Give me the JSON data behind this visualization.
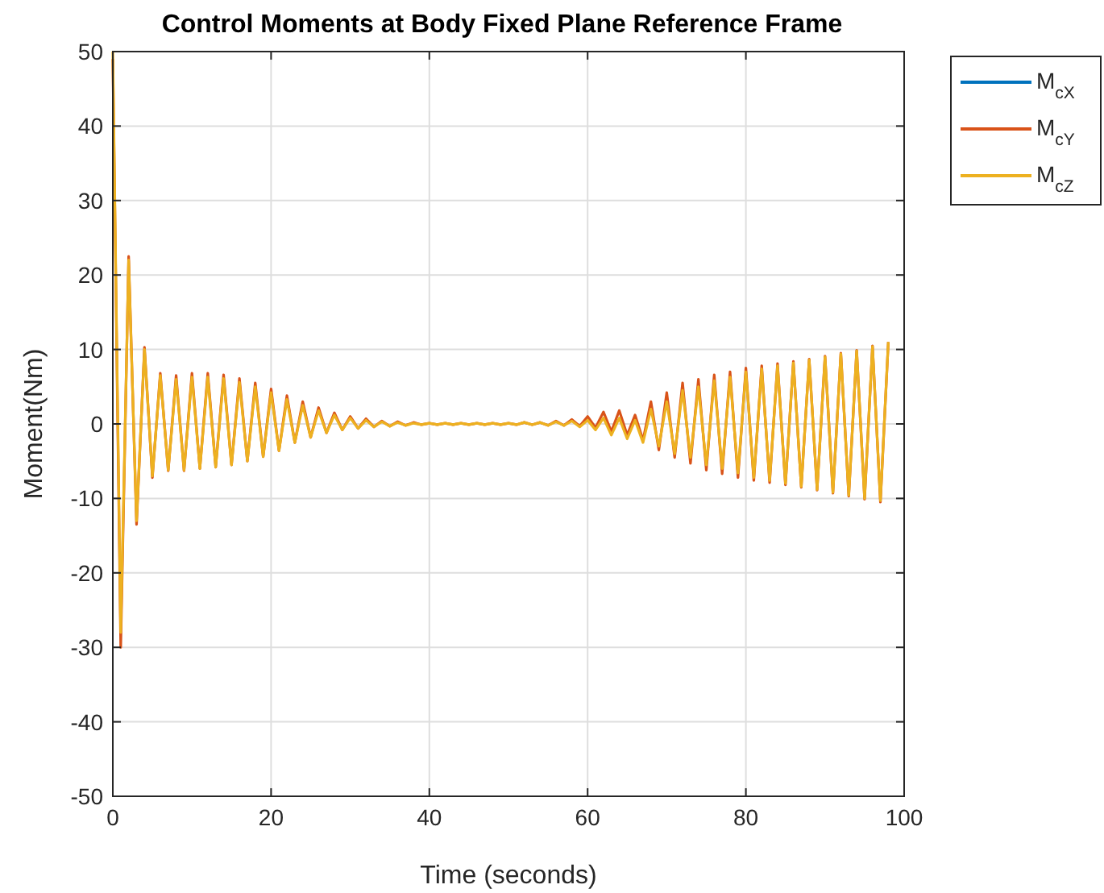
{
  "chart_data": {
    "type": "line",
    "title": "Control Moments at Body Fixed Plane Reference Frame",
    "xlabel": "Time (seconds)",
    "ylabel": "Moment(Nm)",
    "x": [
      0,
      1,
      2,
      3,
      4,
      5,
      6,
      7,
      8,
      9,
      10,
      11,
      12,
      13,
      14,
      15,
      16,
      17,
      18,
      19,
      20,
      21,
      22,
      23,
      24,
      25,
      26,
      27,
      28,
      29,
      30,
      31,
      32,
      33,
      34,
      35,
      36,
      37,
      38,
      39,
      40,
      41,
      42,
      43,
      44,
      45,
      46,
      47,
      48,
      49,
      50,
      51,
      52,
      53,
      54,
      55,
      56,
      57,
      58,
      59,
      60,
      61,
      62,
      63,
      64,
      65,
      66,
      67,
      68,
      69,
      70,
      71,
      72,
      73,
      74,
      75,
      76,
      77,
      78,
      79,
      80,
      81,
      82,
      83,
      84,
      85,
      86,
      87,
      88,
      89,
      90,
      91,
      92,
      93,
      94,
      95,
      96,
      97,
      98
    ],
    "xlim": [
      0,
      100
    ],
    "xticks": [
      0,
      20,
      40,
      60,
      80,
      100
    ],
    "ylim": [
      -50,
      50
    ],
    "yticks": [
      -50,
      -40,
      -30,
      -20,
      -10,
      0,
      10,
      20,
      30,
      40,
      50
    ],
    "grid": true,
    "legend": "top right",
    "line_style": "solid",
    "series": [
      {
        "name": "M$_{cX}$",
        "color": "#0072bd",
        "values": [
          null,
          null,
          null,
          null,
          null,
          null,
          null,
          null,
          null,
          null,
          null,
          null,
          null,
          null,
          null,
          null,
          null,
          null,
          null,
          null,
          null,
          null,
          null,
          null,
          null,
          null,
          null,
          null,
          null,
          null,
          null,
          null,
          null,
          null,
          null,
          null,
          null,
          null,
          null,
          null,
          null,
          null,
          null,
          null,
          null,
          null,
          null,
          null,
          null,
          null,
          null,
          null,
          null,
          null,
          null,
          null,
          null,
          null,
          null,
          null,
          null,
          null,
          null,
          null,
          null,
          null,
          null,
          null,
          null,
          null,
          null,
          null,
          null,
          null,
          null,
          null,
          null,
          null,
          null,
          null,
          null,
          null,
          null,
          null,
          null,
          null,
          null,
          null,
          null,
          null,
          null,
          null,
          null,
          null,
          null,
          null,
          null,
          null,
          null
        ]
      },
      {
        "name": "M$_{cY}$",
        "color": "#d95319",
        "values": [
          49,
          -30,
          22.5,
          -13.5,
          10.3,
          -7.2,
          6.8,
          -6.3,
          6.5,
          -6.3,
          6.8,
          -6,
          6.8,
          -5.8,
          6.6,
          -5.5,
          6.1,
          -5,
          5.5,
          -4.4,
          4.7,
          -3.6,
          3.8,
          -2.5,
          3,
          -1.8,
          2.2,
          -1.2,
          1.5,
          -0.8,
          1,
          -0.6,
          0.7,
          -0.4,
          0.4,
          -0.3,
          0.3,
          -0.2,
          0.2,
          -0.1,
          0.1,
          -0.1,
          0.1,
          -0.1,
          0.1,
          -0.1,
          0.1,
          -0.1,
          0.1,
          -0.1,
          0.1,
          -0.1,
          0.2,
          -0.1,
          0.2,
          -0.2,
          0.4,
          -0.2,
          0.6,
          -0.3,
          1,
          -0.5,
          1.6,
          -1,
          1.8,
          -1.5,
          1.2,
          -2.2,
          3,
          -3.5,
          4.2,
          -4.5,
          5.5,
          -5.3,
          6,
          -6.2,
          6.6,
          -6.7,
          7,
          -7.2,
          7.5,
          -7.6,
          7.8,
          -7.9,
          8.1,
          -8.2,
          8.4,
          -8.5,
          8.7,
          -8.9,
          9.1,
          -9.3,
          9.5,
          -9.7,
          9.9,
          -10.1,
          10.5,
          -10.5,
          11
        ]
      },
      {
        "name": "M$_{cZ}$",
        "color": "#edb120",
        "values": [
          50,
          -28,
          22,
          -13,
          10,
          -7,
          6.5,
          -6.2,
          6,
          -6.2,
          6.3,
          -6,
          6.3,
          -5.8,
          6.1,
          -5.5,
          5.6,
          -5,
          5,
          -4.4,
          4.2,
          -3.6,
          3.3,
          -2.5,
          2.5,
          -1.8,
          1.8,
          -1.2,
          1.2,
          -0.8,
          0.8,
          -0.6,
          0.5,
          -0.4,
          0.3,
          -0.3,
          0.2,
          -0.2,
          0.1,
          -0.1,
          0.1,
          -0.1,
          0.1,
          -0.1,
          0.1,
          -0.1,
          0.1,
          -0.1,
          0.1,
          -0.1,
          0.1,
          -0.1,
          0.2,
          -0.1,
          0.2,
          -0.2,
          0.3,
          -0.2,
          0.4,
          -0.4,
          0.5,
          -0.8,
          0.8,
          -1.5,
          0.8,
          -2,
          0.5,
          -2.5,
          2,
          -3,
          3,
          -4,
          4.5,
          -4.5,
          5,
          -5.5,
          5.8,
          -6,
          6.3,
          -6.6,
          7,
          -7.2,
          7.4,
          -7.6,
          7.8,
          -8,
          8.2,
          -8.4,
          8.6,
          -8.8,
          9,
          -9.2,
          9.4,
          -9.6,
          9.8,
          -10,
          10.4,
          -10.3,
          11
        ]
      }
    ]
  }
}
